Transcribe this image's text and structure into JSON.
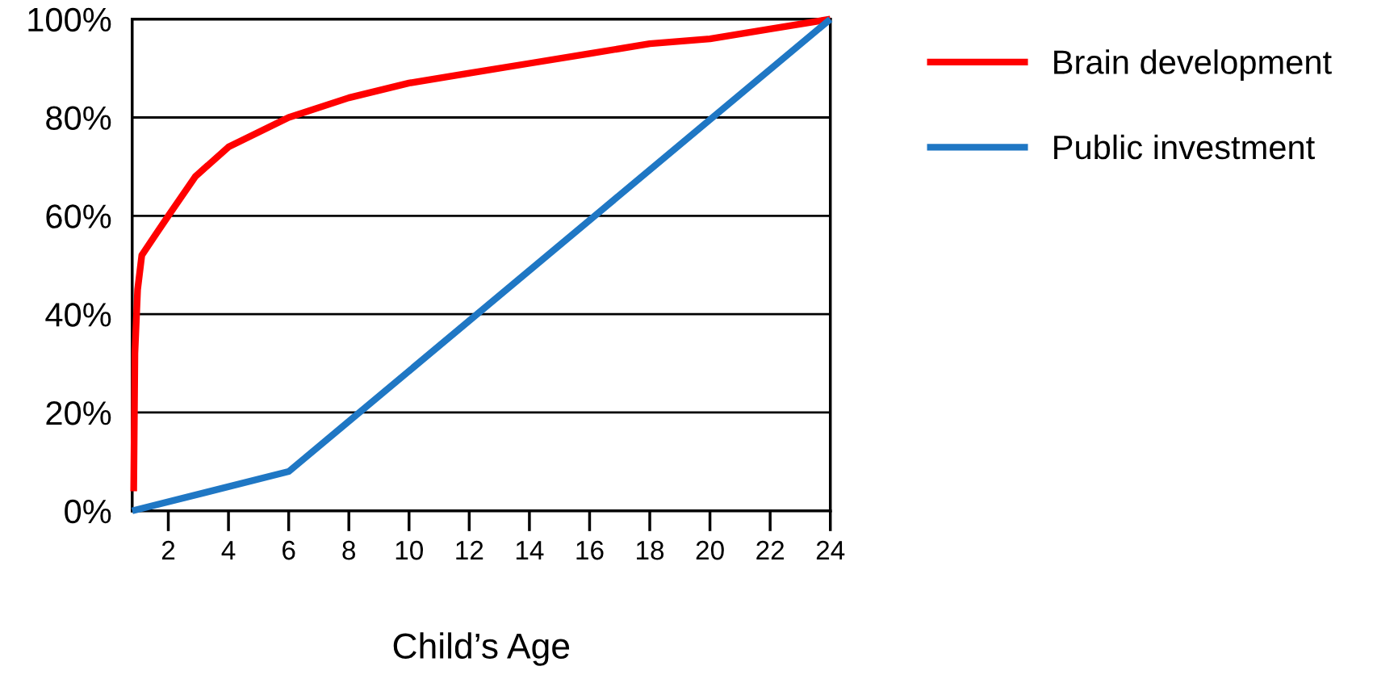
{
  "chart_data": {
    "type": "line",
    "xlabel": "Child’s Age",
    "series": [
      {
        "name": "Brain development",
        "color": "#ff0000",
        "x": [
          0.85,
          0.89,
          0.98,
          1.12,
          1.56,
          2.0,
          2.9,
          4.0,
          6.0,
          8.0,
          10.0,
          12.0,
          14.0,
          16.0,
          18.0,
          20.0,
          22.0,
          24.0
        ],
        "values": [
          4,
          32,
          45,
          52,
          56,
          60,
          68,
          74,
          80,
          84,
          87,
          89,
          91,
          93,
          95,
          96,
          98,
          100
        ]
      },
      {
        "name": "Public investment",
        "color": "#1f77c4",
        "x": [
          0.8,
          6.0,
          24.0
        ],
        "values": [
          0,
          8,
          100
        ]
      }
    ],
    "xlim": [
      0.8,
      24
    ],
    "xticks": [
      2,
      4,
      6,
      8,
      10,
      12,
      14,
      16,
      18,
      20,
      22,
      24
    ],
    "ylim": [
      0,
      100
    ],
    "yticks": [
      {
        "value": 0,
        "label": "0%"
      },
      {
        "value": 20,
        "label": "20%"
      },
      {
        "value": 40,
        "label": "40%"
      },
      {
        "value": 60,
        "label": "60%"
      },
      {
        "value": 80,
        "label": "80%"
      },
      {
        "value": 100,
        "label": "100%"
      }
    ],
    "grid": "y",
    "legend": "top right",
    "marker": "none",
    "line_style": "solid"
  }
}
